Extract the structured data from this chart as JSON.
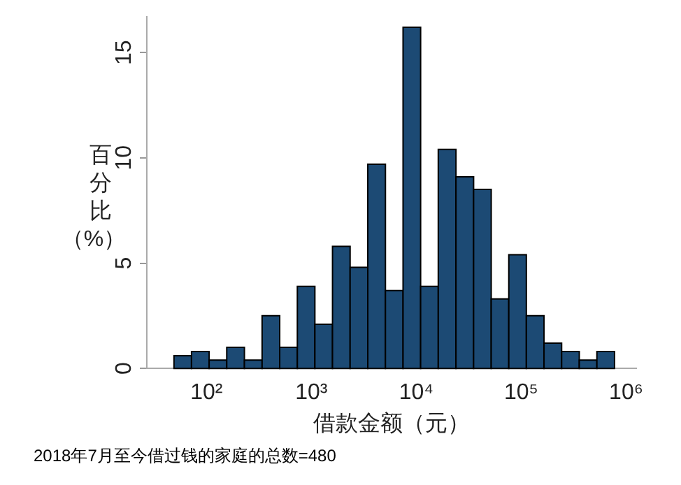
{
  "chart_data": {
    "type": "histogram",
    "xlabel": "借款金额（元）",
    "ylabel": "百分比（%）",
    "annotations": [
      "2018年7月至今借过钱的家庭的总数=480"
    ],
    "bins": [
      49,
      72,
      106,
      156,
      230,
      339,
      499,
      735,
      1080,
      1590,
      2340,
      3450,
      5080,
      7480,
      11000,
      16200,
      23900,
      35200,
      51800,
      76200,
      112000,
      165000,
      243000,
      358000,
      527000,
      776000
    ],
    "values": [
      0.6,
      0.8,
      0.4,
      1.0,
      0.4,
      2.5,
      1.0,
      3.9,
      2.1,
      5.8,
      4.8,
      9.7,
      3.7,
      16.2,
      3.9,
      10.4,
      9.1,
      8.5,
      3.3,
      5.4,
      2.5,
      1.2,
      0.8,
      0.4,
      0.8
    ],
    "color": "#1c4a74",
    "log": "x",
    "grid": false,
    "legend": false,
    "xlim": [
      27,
      1250000
    ],
    "xticks": [
      {
        "value": 100,
        "label": "10²"
      },
      {
        "value": 1000,
        "label": "10³"
      },
      {
        "value": 10000,
        "label": "10⁴"
      },
      {
        "value": 100000,
        "label": "10⁵"
      },
      {
        "value": 1000000,
        "label": "10⁶"
      }
    ],
    "ylim": [
      0,
      16.7
    ],
    "yticks": [
      0,
      5,
      10,
      15
    ]
  }
}
